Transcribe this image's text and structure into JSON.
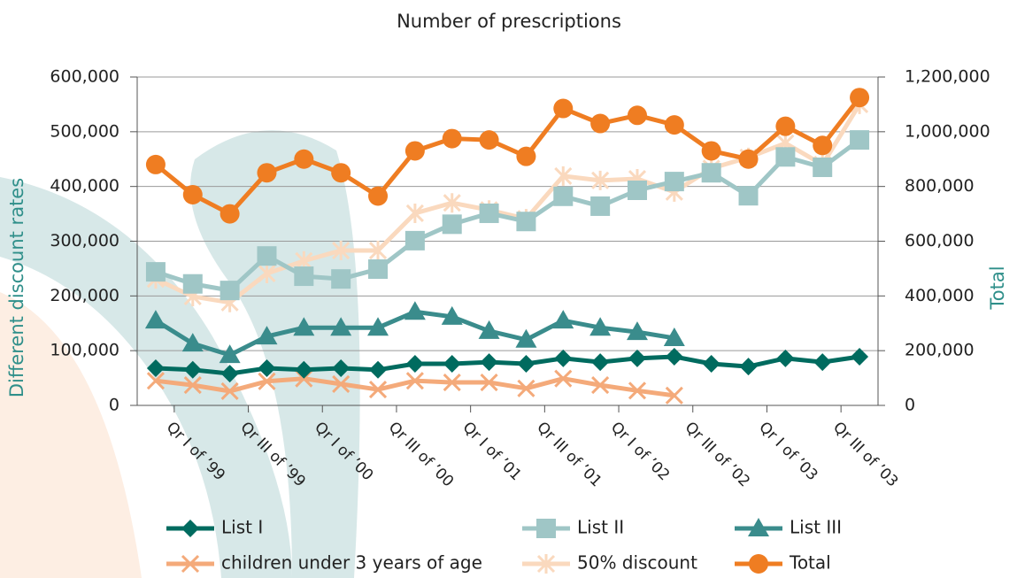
{
  "chart_data": {
    "type": "line",
    "title": "Number of prescriptions",
    "y_label": "Different discount rates",
    "y2_label": "Total",
    "categories": [
      "Qr I of ’99",
      null,
      "Qr III of ’99",
      null,
      "Qr I of ’00",
      null,
      "Qr III of ’00",
      null,
      "Qr I of ’01",
      null,
      "Qr III of ’01",
      null,
      "Qr I of ’02",
      null,
      "Qr III of ’02",
      null,
      "Qr I of ’03",
      null,
      "Qr III of ’03",
      null
    ],
    "ylim": [
      0,
      600000
    ],
    "yticks": [
      0,
      {
        "value": 100000,
        "label": "100,000"
      },
      {
        "value": 200000,
        "label": "200,000"
      },
      {
        "value": 300000,
        "label": "300,000"
      },
      {
        "value": 400000,
        "label": "400,000"
      },
      {
        "value": 500000,
        "label": "500,000"
      },
      {
        "value": 600000,
        "label": "600,000"
      }
    ],
    "y2lim": [
      0,
      1200000
    ],
    "y2ticks": [
      0,
      {
        "value": 200000,
        "label": "200,000"
      },
      {
        "value": 400000,
        "label": "400,000"
      },
      {
        "value": 600000,
        "label": "600,000"
      },
      {
        "value": 800000,
        "label": "800,000"
      },
      {
        "value": 1000000,
        "label": "1,000,000"
      },
      {
        "value": 1200000,
        "label": "1,200,000"
      }
    ],
    "grid": true,
    "series": [
      {
        "name": "List I",
        "color": "#006b5f",
        "marker": "diamond",
        "values": [
          68000,
          65000,
          58000,
          68000,
          65000,
          68000,
          65000,
          76000,
          76000,
          79000,
          76000,
          86000,
          79000,
          86000,
          89000,
          76000,
          71000,
          86000,
          79000,
          89000
        ]
      },
      {
        "name": "List II",
        "color": "#9fc6c6",
        "marker": "square",
        "values": [
          244000,
          222000,
          210000,
          273000,
          236000,
          231000,
          249000,
          301000,
          331000,
          351000,
          336000,
          382000,
          364000,
          393000,
          409000,
          425000,
          383000,
          454000,
          435000,
          485000
        ]
      },
      {
        "name": "List III",
        "color": "#3a8c8c",
        "marker": "triangle",
        "values": [
          155000,
          113000,
          92000,
          126000,
          142000,
          142000,
          142000,
          171000,
          162000,
          136000,
          120000,
          155000,
          142000,
          134000,
          123000,
          null,
          null,
          null,
          null,
          null
        ]
      },
      {
        "name": "children under 3 years of age",
        "color": "#f4aa7a",
        "marker": "x",
        "values": [
          45000,
          37000,
          26000,
          44000,
          49000,
          39000,
          29000,
          45000,
          42000,
          42000,
          31000,
          49000,
          37000,
          27000,
          18000,
          null,
          null,
          null,
          null,
          null
        ]
      },
      {
        "name": "50% discount",
        "color": "#fad9be",
        "marker": "star",
        "values": [
          231000,
          199000,
          188000,
          241000,
          264000,
          283000,
          283000,
          351000,
          370000,
          357000,
          341000,
          419000,
          411000,
          414000,
          390000,
          433000,
          453000,
          479000,
          440000,
          550000
        ]
      },
      {
        "name": "Total",
        "color": "#ef7d22",
        "marker": "circle",
        "axis": "y2",
        "values": [
          880000,
          770000,
          700000,
          850000,
          900000,
          850000,
          765000,
          930000,
          975000,
          970000,
          910000,
          1085000,
          1030000,
          1060000,
          1025000,
          930000,
          900000,
          1020000,
          950000,
          1125000
        ]
      }
    ]
  }
}
